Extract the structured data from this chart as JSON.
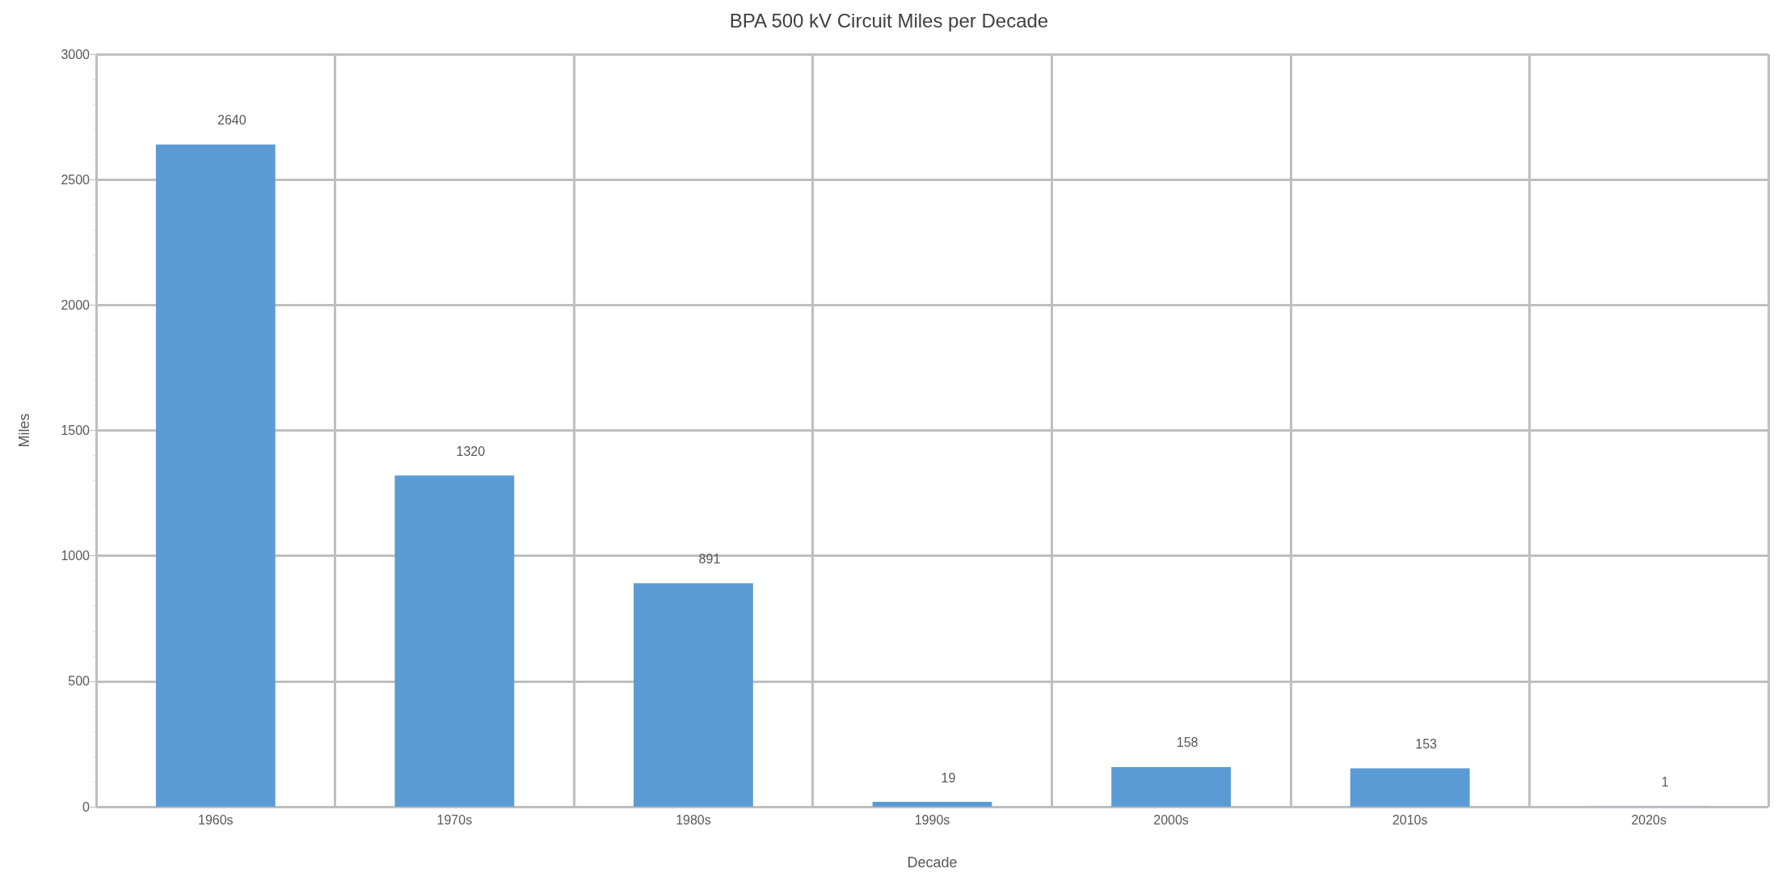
{
  "chart_data": {
    "type": "bar",
    "title": "BPA 500 kV Circuit Miles per Decade",
    "xlabel": "Decade",
    "ylabel": "Miles",
    "categories": [
      "1960s",
      "1970s",
      "1980s",
      "1990s",
      "2000s",
      "2010s",
      "2020s"
    ],
    "values": [
      2640,
      1320,
      891,
      19,
      158,
      153,
      1
    ],
    "color": "#5b9bd5",
    "ylim": [
      0,
      3000
    ],
    "yticks": [
      0,
      500,
      1000,
      1500,
      2000,
      2500,
      3000
    ],
    "grid": true,
    "data_labels": true
  }
}
